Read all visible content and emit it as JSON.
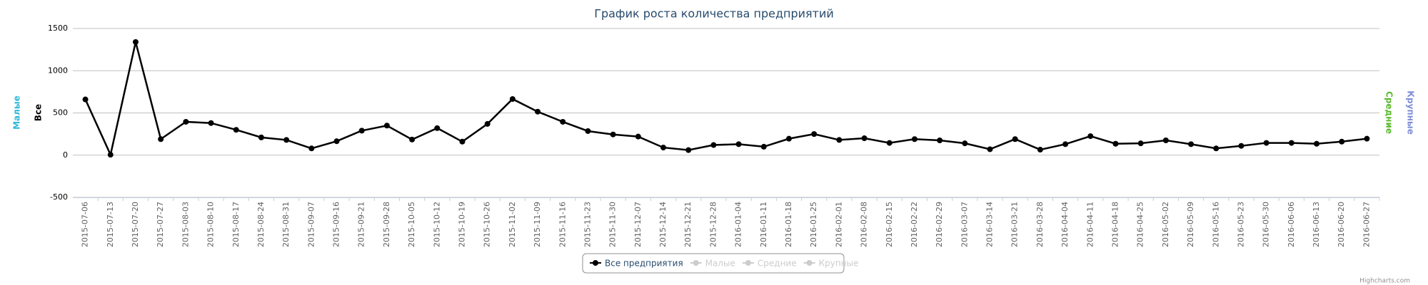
{
  "chart_data": {
    "type": "line",
    "title": "График роста количества предприятий",
    "y_axis_titles": [
      {
        "text": "Малые",
        "color": "#2fb8d8"
      },
      {
        "text": "Все",
        "color": "#000000"
      }
    ],
    "y2_axis_titles": [
      {
        "text": "Средние",
        "color": "#5ab92c"
      },
      {
        "text": "Крупные",
        "color": "#7f8fd6"
      }
    ],
    "categories": [
      "2015-07-06",
      "2015-07-13",
      "2015-07-20",
      "2015-07-27",
      "2015-08-03",
      "2015-08-10",
      "2015-08-17",
      "2015-08-24",
      "2015-08-31",
      "2015-09-07",
      "2015-09-16",
      "2015-09-21",
      "2015-09-28",
      "2015-10-05",
      "2015-10-12",
      "2015-10-19",
      "2015-10-26",
      "2015-11-02",
      "2015-11-09",
      "2015-11-16",
      "2015-11-23",
      "2015-11-30",
      "2015-12-07",
      "2015-12-14",
      "2015-12-21",
      "2015-12-28",
      "2016-01-04",
      "2016-01-11",
      "2016-01-18",
      "2016-01-25",
      "2016-02-01",
      "2016-02-08",
      "2016-02-15",
      "2016-02-22",
      "2016-02-29",
      "2016-03-07",
      "2016-03-14",
      "2016-03-21",
      "2016-03-28",
      "2016-04-04",
      "2016-04-11",
      "2016-04-18",
      "2016-04-25",
      "2016-05-02",
      "2016-05-09",
      "2016-05-16",
      "2016-05-23",
      "2016-05-30",
      "2016-06-06",
      "2016-06-13",
      "2016-06-20",
      "2016-06-27"
    ],
    "series": [
      {
        "name": "Все предприятия",
        "color": "#000000",
        "visible": true,
        "values": [
          660,
          5,
          1340,
          190,
          395,
          380,
          300,
          210,
          180,
          80,
          165,
          290,
          350,
          185,
          320,
          160,
          370,
          665,
          515,
          395,
          285,
          245,
          220,
          90,
          60,
          120,
          130,
          100,
          195,
          250,
          180,
          200,
          145,
          190,
          175,
          140,
          70,
          190,
          65,
          130,
          225,
          135,
          140,
          175,
          130,
          80,
          110,
          145,
          145,
          135,
          160,
          195
        ]
      },
      {
        "name": "Малые",
        "color": "#cccccc",
        "visible": false
      },
      {
        "name": "Средние",
        "color": "#cccccc",
        "visible": false
      },
      {
        "name": "Крупные",
        "color": "#cccccc",
        "visible": false
      }
    ],
    "ylim": [
      -500,
      1500
    ],
    "yticks": [
      -500,
      0,
      500,
      1000,
      1500
    ],
    "grid": true,
    "legend": "bottom",
    "credits": "Highcharts.com"
  }
}
